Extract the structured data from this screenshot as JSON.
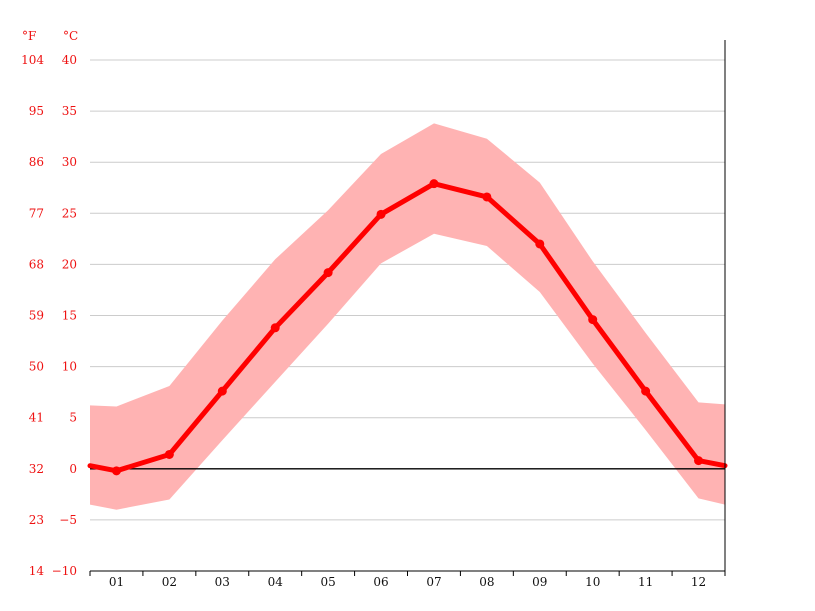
{
  "chart_data": {
    "type": "area",
    "title": "",
    "xlabel": "",
    "ylabel": "",
    "unit_labels": {
      "f": "°F",
      "c": "°C"
    },
    "categories": [
      "01",
      "02",
      "03",
      "04",
      "05",
      "06",
      "07",
      "08",
      "09",
      "10",
      "11",
      "12"
    ],
    "x": [
      1,
      2,
      3,
      4,
      5,
      6,
      7,
      8,
      9,
      10,
      11,
      12
    ],
    "ylim": [
      -10,
      40
    ],
    "xlim": [
      0.5,
      12.5
    ],
    "yticks_c": [
      "40",
      "35",
      "30",
      "25",
      "20",
      "15",
      "10",
      "5",
      "0",
      "−5",
      "−10"
    ],
    "yticks_c_values": [
      40,
      35,
      30,
      25,
      20,
      15,
      10,
      5,
      0,
      -5,
      -10
    ],
    "yticks_f": [
      "104",
      "95",
      "86",
      "77",
      "68",
      "59",
      "50",
      "41",
      "32",
      "23",
      "14"
    ],
    "grid": true,
    "series": [
      {
        "role": "average",
        "values": [
          -0.2,
          1.4,
          7.6,
          13.8,
          19.2,
          24.9,
          27.9,
          26.6,
          22.0,
          14.6,
          7.6,
          0.8
        ]
      },
      {
        "role": "band-low",
        "values": [
          -4.0,
          -3.0,
          2.8,
          8.5,
          14.2,
          20.1,
          23.0,
          21.8,
          17.3,
          10.3,
          3.8,
          -2.9
        ]
      },
      {
        "role": "band-high",
        "values": [
          6.1,
          8.1,
          14.5,
          20.5,
          25.3,
          30.8,
          33.8,
          32.3,
          28.0,
          20.3,
          13.3,
          6.5
        ]
      }
    ],
    "edge_values": {
      "left": {
        "avg": 0.3,
        "low": -3.5,
        "high": 6.2
      },
      "right": {
        "avg": 0.3,
        "low": -3.5,
        "high": 6.3
      }
    },
    "colors": {
      "line": "#ff0000",
      "band": "#ffb3b3",
      "grid": "#cccccc",
      "zero": "#000000",
      "axis": "#000000"
    }
  }
}
